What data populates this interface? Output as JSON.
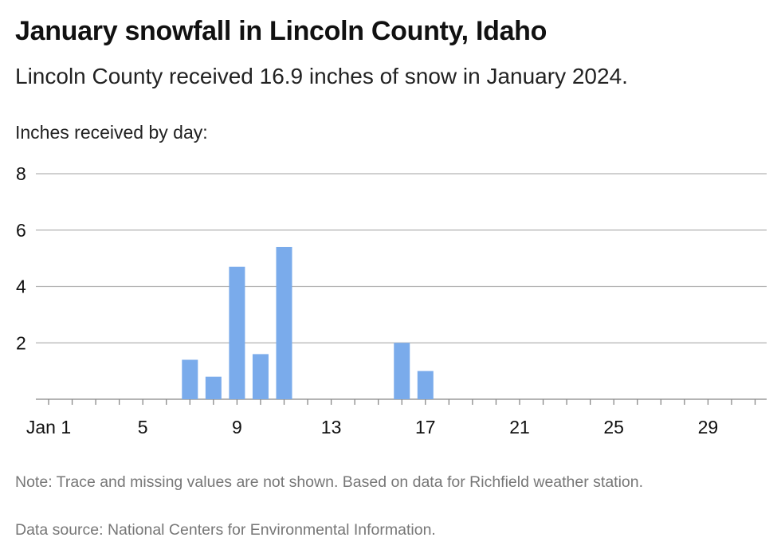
{
  "title": "January snowfall in Lincoln County, Idaho",
  "subtitle": "Lincoln County received 16.9 inches of snow in January 2024.",
  "note": "Note: Trace and missing values are not shown. Based on data for Richfield weather station.",
  "source": "Data source: National Centers for Environmental Information.",
  "colors": {
    "bar": "#7aabeb",
    "grid": "#b3b3b3",
    "axis": "#888888"
  },
  "chart_data": {
    "type": "bar",
    "title": "January snowfall in Lincoln County, Idaho",
    "ylabel": "Inches received by day:",
    "xlabel": "",
    "x": [
      7,
      8,
      9,
      10,
      11,
      16,
      17
    ],
    "values": [
      1.4,
      0.8,
      4.7,
      1.6,
      5.4,
      2.0,
      1.0
    ],
    "xlim": [
      1,
      31
    ],
    "ylim": [
      0,
      8
    ],
    "yticks": [
      2,
      4,
      6,
      8
    ],
    "xticks": [
      1,
      5,
      9,
      13,
      17,
      21,
      25,
      29
    ],
    "xtick_labels": [
      "Jan 1",
      "5",
      "9",
      "13",
      "17",
      "21",
      "25",
      "29"
    ],
    "grid": true,
    "legend": "none"
  }
}
